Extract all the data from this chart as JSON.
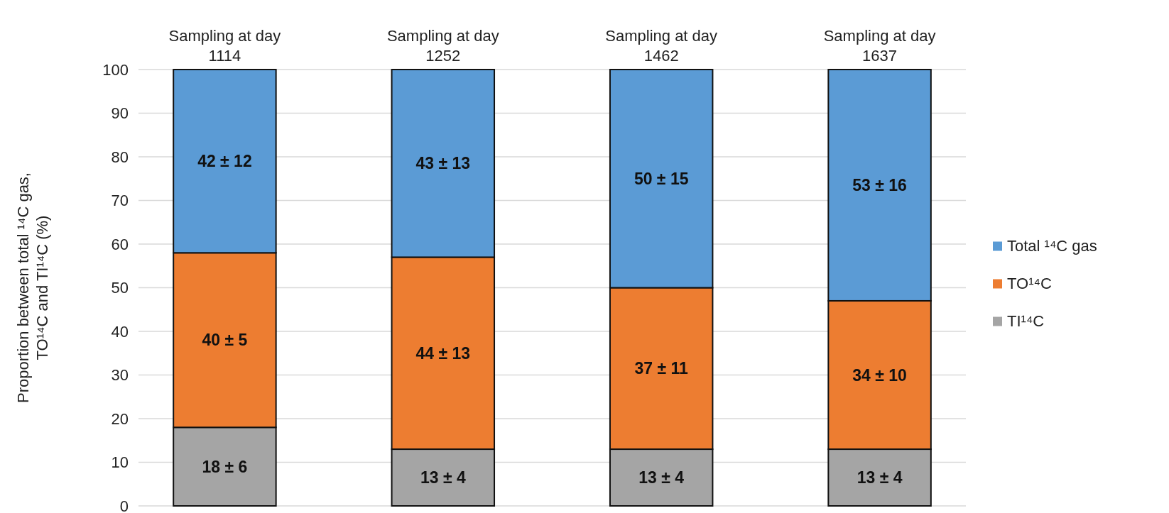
{
  "chart_data": {
    "type": "bar",
    "stacked": true,
    "categories": [
      "Sampling at day 1114",
      "Sampling at day 1252",
      "Sampling at day 1462",
      "Sampling at day 1637"
    ],
    "series": [
      {
        "name": "TI¹⁴C",
        "color": "#a5a5a5",
        "values": [
          18,
          13,
          13,
          13
        ],
        "value_labels": [
          "18 ± 6",
          "13 ± 4",
          "13 ± 4",
          "13 ± 4"
        ]
      },
      {
        "name": "TO¹⁴C",
        "color": "#ed7d31",
        "values": [
          40,
          44,
          37,
          34
        ],
        "value_labels": [
          "40 ± 5",
          "44 ± 13",
          "37 ± 11",
          "34 ± 10"
        ]
      },
      {
        "name": "Total ¹⁴C gas",
        "color": "#5b9bd5",
        "values": [
          42,
          43,
          50,
          53
        ],
        "value_labels": [
          "42 ± 12",
          "43 ± 13",
          "50 ± 15",
          "53 ± 16"
        ]
      }
    ],
    "ylabel": "Proportion between total ¹⁴C gas, TO¹⁴C and TI¹⁴C (%)",
    "ylim": [
      0,
      100
    ],
    "yticks": [
      0,
      10,
      20,
      30,
      40,
      50,
      60,
      70,
      80,
      90,
      100
    ],
    "grid": "y",
    "legend": "right"
  }
}
